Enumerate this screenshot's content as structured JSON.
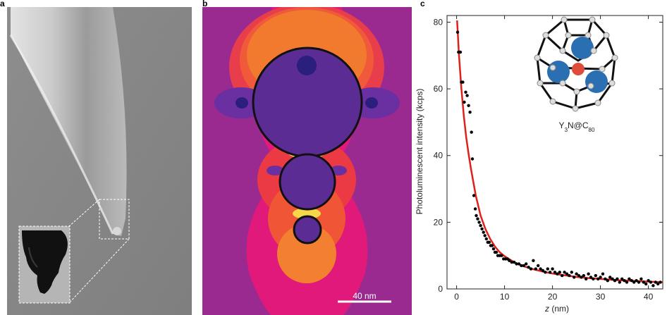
{
  "panels": {
    "a": {
      "letter": "a"
    },
    "b": {
      "letter": "b",
      "scale_bar_label": "40 nm"
    },
    "c": {
      "letter": "c"
    }
  },
  "molecule_label": {
    "main": "Y",
    "sub1": "3",
    "mid": "N@C",
    "sub2": "80"
  },
  "chart_data": {
    "type": "scatter",
    "xlabel_italic": "z",
    "xlabel_unit": " (nm)",
    "ylabel": "Photoluminescent intensity (kcps)",
    "xlim": [
      -2,
      43
    ],
    "ylim": [
      0,
      82
    ],
    "x_ticks": [
      0,
      10,
      20,
      30,
      40
    ],
    "y_ticks": [
      0,
      20,
      40,
      60,
      80
    ],
    "grid": false,
    "colors": {
      "points": "#000000",
      "fit": "#e0201b"
    },
    "points": [
      [
        0.2,
        77
      ],
      [
        0.4,
        71
      ],
      [
        0.8,
        71
      ],
      [
        1.0,
        62
      ],
      [
        1.3,
        62
      ],
      [
        1.6,
        56
      ],
      [
        1.9,
        59
      ],
      [
        2.2,
        58
      ],
      [
        2.5,
        55
      ],
      [
        2.8,
        53
      ],
      [
        3.1,
        47
      ],
      [
        3.3,
        39
      ],
      [
        3.6,
        28
      ],
      [
        3.9,
        24
      ],
      [
        4.1,
        22
      ],
      [
        4.4,
        21
      ],
      [
        4.7,
        20
      ],
      [
        5.0,
        19
      ],
      [
        5.3,
        18
      ],
      [
        5.6,
        17
      ],
      [
        5.9,
        16
      ],
      [
        6.2,
        15
      ],
      [
        6.5,
        14
      ],
      [
        6.8,
        14
      ],
      [
        7.1,
        13
      ],
      [
        7.4,
        13
      ],
      [
        7.7,
        12
      ],
      [
        8.0,
        11
      ],
      [
        8.3,
        11
      ],
      [
        8.6,
        10
      ],
      [
        9.0,
        10
      ],
      [
        9.4,
        10
      ],
      [
        9.8,
        9
      ],
      [
        10.2,
        9
      ],
      [
        10.6,
        9
      ],
      [
        11.0,
        8.5
      ],
      [
        11.5,
        8
      ],
      [
        12.0,
        8
      ],
      [
        12.5,
        7.5
      ],
      [
        13.0,
        7.5
      ],
      [
        13.5,
        7
      ],
      [
        14.0,
        7
      ],
      [
        14.5,
        7.5
      ],
      [
        15.0,
        6.5
      ],
      [
        15.5,
        6
      ],
      [
        16.0,
        8.5
      ],
      [
        16.5,
        6
      ],
      [
        17.0,
        7
      ],
      [
        17.5,
        6
      ],
      [
        18.0,
        5.5
      ],
      [
        18.5,
        5
      ],
      [
        19.0,
        6
      ],
      [
        19.5,
        5
      ],
      [
        20.0,
        6
      ],
      [
        20.5,
        5
      ],
      [
        21.0,
        4.5
      ],
      [
        21.5,
        5
      ],
      [
        22.0,
        4
      ],
      [
        22.5,
        5
      ],
      [
        23.0,
        4.5
      ],
      [
        23.5,
        4
      ],
      [
        24.0,
        5
      ],
      [
        24.5,
        3.5
      ],
      [
        25.0,
        4.5
      ],
      [
        25.5,
        4
      ],
      [
        26.0,
        3.5
      ],
      [
        26.5,
        4
      ],
      [
        27.0,
        3
      ],
      [
        27.5,
        4.5
      ],
      [
        28.0,
        3.5
      ],
      [
        28.5,
        3
      ],
      [
        29.0,
        4
      ],
      [
        29.5,
        3
      ],
      [
        30.0,
        3.5
      ],
      [
        30.5,
        4.5
      ],
      [
        31.0,
        3
      ],
      [
        31.5,
        2.5
      ],
      [
        32.0,
        3.5
      ],
      [
        32.5,
        3
      ],
      [
        33.0,
        2.5
      ],
      [
        33.5,
        3
      ],
      [
        34.0,
        2
      ],
      [
        34.5,
        3
      ],
      [
        35.0,
        2.5
      ],
      [
        35.5,
        2
      ],
      [
        36.0,
        3
      ],
      [
        36.5,
        2.5
      ],
      [
        37.0,
        2
      ],
      [
        37.5,
        2.5
      ],
      [
        38.0,
        2
      ],
      [
        38.5,
        3
      ],
      [
        39.0,
        2
      ],
      [
        39.5,
        1.5
      ],
      [
        40.0,
        2.5
      ],
      [
        40.5,
        2
      ],
      [
        41.0,
        1
      ],
      [
        41.5,
        2
      ],
      [
        42.0,
        1.5
      ],
      [
        42.5,
        2
      ]
    ],
    "fit_curve": [
      [
        0.1,
        80.5
      ],
      [
        0.5,
        70
      ],
      [
        1.0,
        60
      ],
      [
        1.5,
        52
      ],
      [
        2.0,
        45.5
      ],
      [
        2.5,
        40.5
      ],
      [
        3.0,
        36
      ],
      [
        3.5,
        32
      ],
      [
        4.0,
        28
      ],
      [
        4.5,
        25
      ],
      [
        5.0,
        22
      ],
      [
        6.0,
        18
      ],
      [
        7.0,
        15
      ],
      [
        8.0,
        12.7
      ],
      [
        9.0,
        11
      ],
      [
        10.0,
        9.8
      ],
      [
        12.0,
        8
      ],
      [
        14.0,
        6.8
      ],
      [
        16.0,
        5.9
      ],
      [
        18.0,
        5.2
      ],
      [
        20.0,
        4.6
      ],
      [
        22.0,
        4.2
      ],
      [
        25.0,
        3.6
      ],
      [
        28.0,
        3.2
      ],
      [
        31.0,
        2.9
      ],
      [
        34.0,
        2.6
      ],
      [
        37.0,
        2.4
      ],
      [
        40.0,
        2.2
      ],
      [
        43.0,
        2.0
      ]
    ]
  }
}
